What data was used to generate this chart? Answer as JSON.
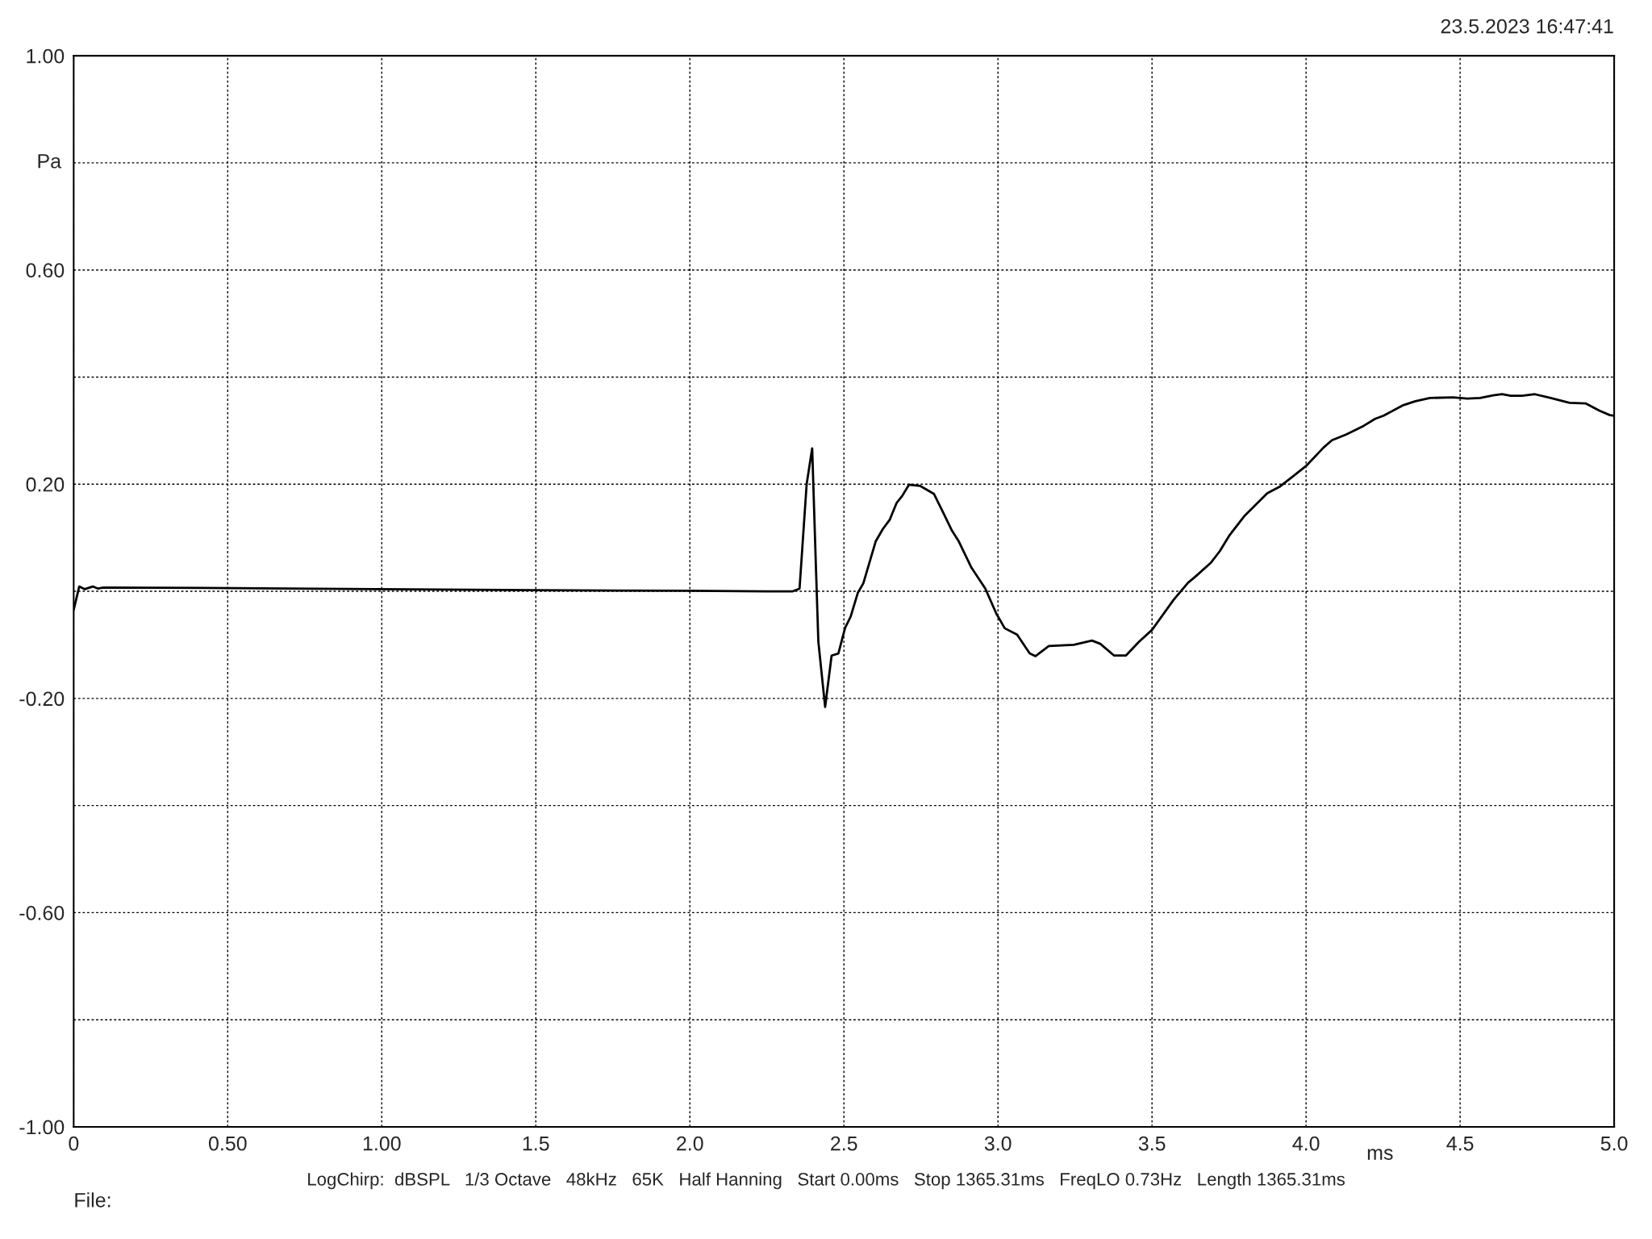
{
  "chart_data": {
    "type": "line",
    "ylabel": "Pa",
    "xlabel": "ms",
    "annotations": [
      "23.5.2023 16:47:41",
      "LogChirp:  dBSPL   1/3 Octave   48kHz   65K   Half Hanning   Start 0.00ms   Stop 1365.31ms   FreqLO 0.73Hz   Length 1365.31ms",
      "File:"
    ],
    "xlim": [
      0,
      5.0
    ],
    "ylim": [
      -1.0,
      1.0
    ],
    "xticks": [
      0,
      {
        "value": 0.5,
        "label": "0.50"
      },
      {
        "value": 1.0,
        "label": "1.00"
      },
      1.5,
      {
        "value": 2.0,
        "label": "2.0"
      },
      2.5,
      {
        "value": 3.0,
        "label": "3.0"
      },
      3.5,
      {
        "value": 4.0,
        "label": "4.0"
      },
      4.5,
      {
        "value": 5.0,
        "label": "5.0"
      }
    ],
    "yticks": [
      {
        "value": -1.0,
        "label": "-1.00"
      },
      {
        "value": -0.8,
        "label": null
      },
      {
        "value": -0.6,
        "label": "-0.60"
      },
      {
        "value": -0.4,
        "label": null
      },
      {
        "value": -0.2,
        "label": "-0.20"
      },
      {
        "value": 0,
        "label": null
      },
      {
        "value": 0.2,
        "label": "0.20"
      },
      {
        "value": 0.4,
        "label": null
      },
      {
        "value": 0.6,
        "label": "0.60"
      },
      {
        "value": 0.8,
        "label": null
      },
      {
        "value": 1.0,
        "label": "1.00"
      }
    ],
    "grid": true,
    "legend": false,
    "marker": "none",
    "line_style": "solid",
    "series": [
      {
        "color": "#000000",
        "x": [
          0.0,
          0.002,
          0.018,
          0.036,
          0.062,
          0.079,
          0.097,
          0.52,
          0.98,
          1.5,
          2.0,
          2.248,
          2.334,
          2.356,
          2.379,
          2.397,
          2.41,
          2.417,
          2.439,
          2.46,
          2.482,
          2.504,
          2.522,
          2.545,
          2.563,
          2.603,
          2.626,
          2.649,
          2.671,
          2.689,
          2.711,
          2.747,
          2.792,
          2.824,
          2.851,
          2.873,
          2.914,
          2.959,
          2.995,
          3.022,
          3.062,
          3.103,
          3.122,
          3.165,
          3.246,
          3.305,
          3.332,
          3.377,
          3.415,
          3.458,
          3.5,
          3.57,
          3.617,
          3.64,
          3.692,
          3.72,
          3.752,
          3.799,
          3.874,
          3.916,
          3.958,
          4.0,
          4.056,
          4.084,
          4.131,
          4.187,
          4.224,
          4.252,
          4.313,
          4.355,
          4.402,
          4.477,
          4.523,
          4.565,
          4.607,
          4.636,
          4.664,
          4.701,
          4.743,
          4.794,
          4.855,
          4.907,
          4.953,
          4.986,
          5.0
        ],
        "values": [
          -0.035,
          -0.03,
          0.009,
          0.004,
          0.009,
          0.005,
          0.007,
          0.006,
          0.004,
          0.002,
          0.001,
          0.0,
          0.0,
          0.005,
          0.2,
          0.267,
          0.03,
          -0.094,
          -0.216,
          -0.12,
          -0.116,
          -0.068,
          -0.047,
          -0.003,
          0.015,
          0.093,
          0.116,
          0.134,
          0.165,
          0.178,
          0.199,
          0.197,
          0.182,
          0.145,
          0.113,
          0.093,
          0.044,
          0.005,
          -0.042,
          -0.069,
          -0.081,
          -0.116,
          -0.121,
          -0.102,
          -0.1,
          -0.092,
          -0.098,
          -0.12,
          -0.12,
          -0.094,
          -0.072,
          -0.016,
          0.016,
          0.027,
          0.054,
          0.075,
          0.105,
          0.14,
          0.183,
          0.196,
          0.215,
          0.234,
          0.268,
          0.282,
          0.293,
          0.309,
          0.322,
          0.328,
          0.347,
          0.355,
          0.361,
          0.362,
          0.36,
          0.361,
          0.366,
          0.368,
          0.365,
          0.365,
          0.368,
          0.361,
          0.352,
          0.351,
          0.337,
          0.329,
          0.328
        ]
      }
    ]
  }
}
